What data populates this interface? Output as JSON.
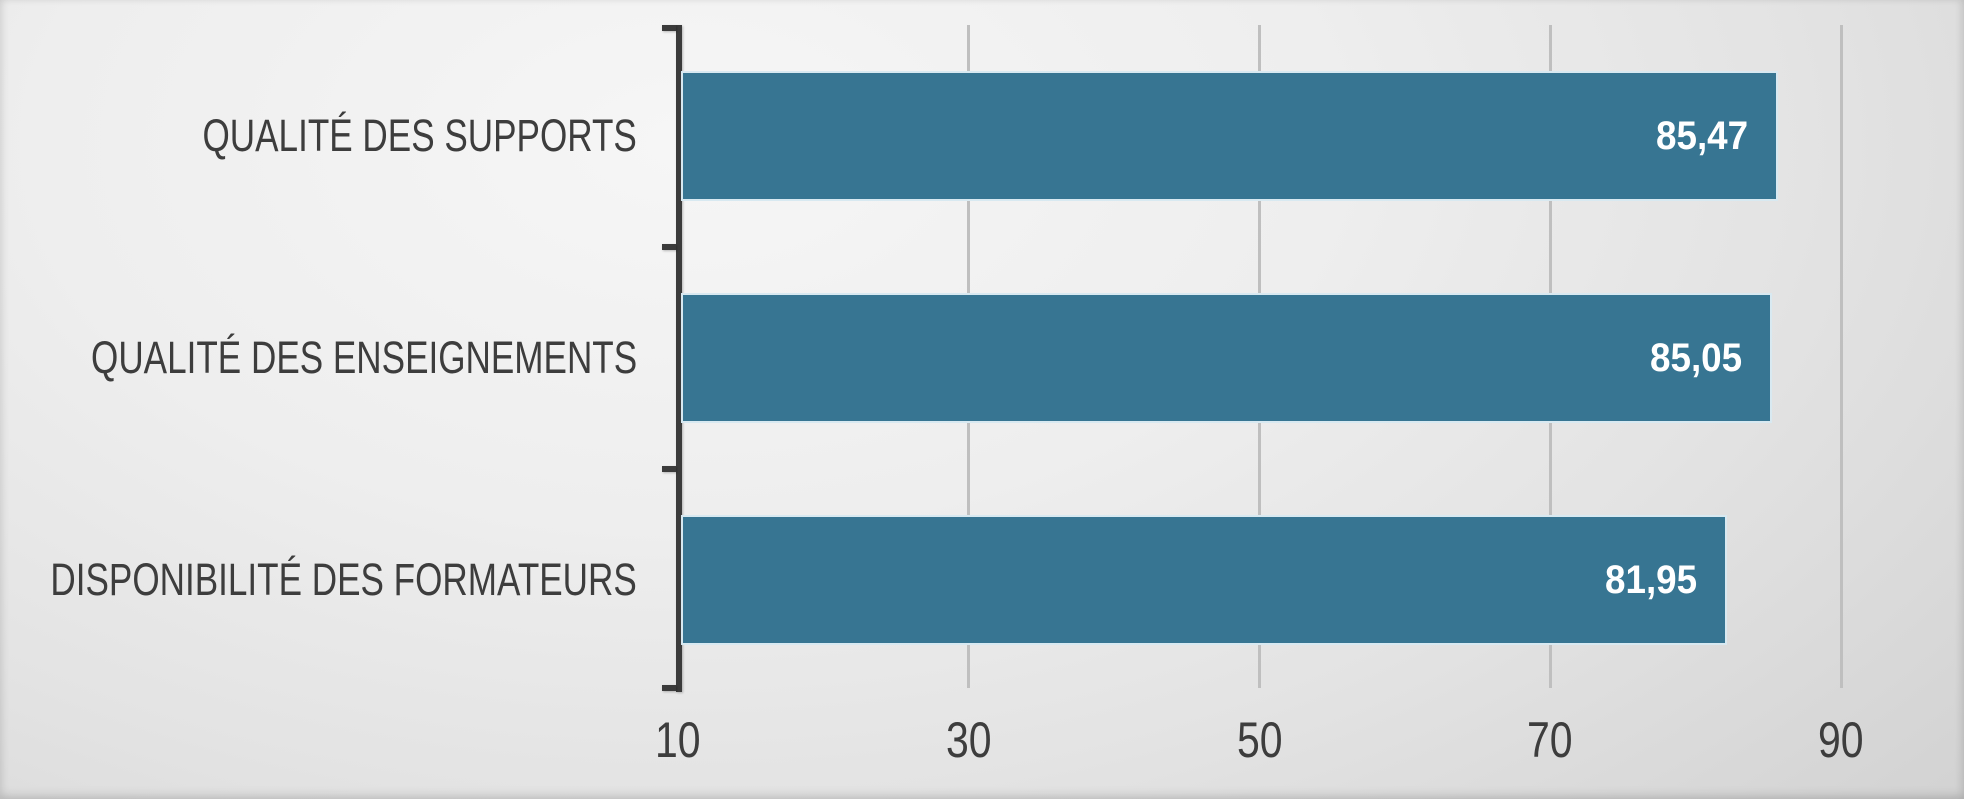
{
  "chart_data": {
    "type": "bar",
    "orientation": "horizontal",
    "title": "",
    "legend": "none",
    "grid": "vertical-gridlines",
    "categories": [
      "QUALITÉ DES SUPPORTS",
      "QUALITÉ DES ENSEIGNEMENTS",
      "DISPONIBILITÉ DES FORMATEURS"
    ],
    "values": [
      85.47,
      85.05,
      81.95
    ],
    "value_labels": [
      "85,47",
      "85,05",
      "81,95"
    ],
    "x_ticks": [
      "10",
      "30",
      "50",
      "70",
      "90"
    ],
    "x_tick_values": [
      10,
      30,
      50,
      70,
      90
    ],
    "xlim": [
      10,
      95
    ],
    "colors": {
      "bar_fill": "#377592",
      "bar_border": "#d8e9f1",
      "value_text": "#ffffff",
      "category_text": "#3d3d3d",
      "tick_text": "#3d3d3d",
      "axis_line": "#3b3b3b",
      "gridline": "#bfbfbf",
      "background_light": "#f6f6f6",
      "background_dark": "#d2d2d2"
    }
  }
}
